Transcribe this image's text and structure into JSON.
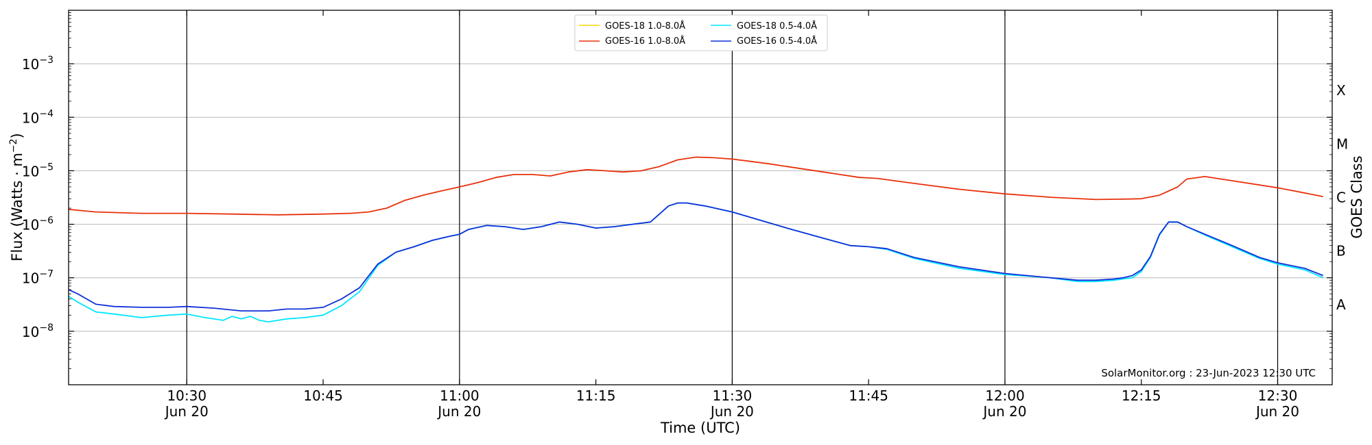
{
  "chart_data": {
    "type": "line",
    "xlabel": "Time (UTC)",
    "ylabel_main": "Flux (Watts · m",
    "ylabel_sup": "−2",
    "ylabel_close": ")",
    "y2label": "GOES Class",
    "xlim": [
      "10:17",
      "12:36"
    ],
    "ylim": [
      1e-09,
      0.01
    ],
    "yscale": "log",
    "x_ticks": [
      {
        "t": "10:30",
        "label": "10:30",
        "sub": "Jun 20"
      },
      {
        "t": "10:45",
        "label": "10:45",
        "sub": ""
      },
      {
        "t": "11:00",
        "label": "11:00",
        "sub": "Jun 20"
      },
      {
        "t": "11:15",
        "label": "11:15",
        "sub": ""
      },
      {
        "t": "11:30",
        "label": "11:30",
        "sub": "Jun 20"
      },
      {
        "t": "11:45",
        "label": "11:45",
        "sub": ""
      },
      {
        "t": "12:00",
        "label": "12:00",
        "sub": "Jun 20"
      },
      {
        "t": "12:15",
        "label": "12:15",
        "sub": ""
      },
      {
        "t": "12:30",
        "label": "12:30",
        "sub": "Jun 20"
      }
    ],
    "vertical_lines": [
      "10:30",
      "11:00",
      "11:30",
      "12:00",
      "12:30"
    ],
    "y_ticks": [
      {
        "value": 1e-08,
        "base": "10",
        "exp": "−8"
      },
      {
        "value": 1e-07,
        "base": "10",
        "exp": "−7"
      },
      {
        "value": 1e-06,
        "base": "10",
        "exp": "−6"
      },
      {
        "value": 1e-05,
        "base": "10",
        "exp": "−5"
      },
      {
        "value": 0.0001,
        "base": "10",
        "exp": "−4"
      },
      {
        "value": 0.001,
        "base": "10",
        "exp": "−3"
      }
    ],
    "goes_classes": [
      {
        "label": "A",
        "value": 3.16e-08
      },
      {
        "label": "B",
        "value": 3.16e-07
      },
      {
        "label": "C",
        "value": 3.16e-06
      },
      {
        "label": "M",
        "value": 3.16e-05
      },
      {
        "label": "X",
        "value": 0.000316
      }
    ],
    "legend": [
      {
        "name": "GOES-18 1.0-8.0Å",
        "color": "#ffd700"
      },
      {
        "name": "GOES-18 0.5-4.0Å",
        "color": "#00e5ff"
      },
      {
        "name": "GOES-16 1.0-8.0Å",
        "color": "#e8300a"
      },
      {
        "name": "GOES-16 0.5-4.0Å",
        "color": "#1030d8"
      }
    ],
    "credit": "SolarMonitor.org : 23-Jun-2023 12:30 UTC",
    "series": [
      {
        "name": "GOES-16 1.0-8.0Å",
        "color": "#e8300a",
        "x": [
          "10:17",
          "10:20",
          "10:25",
          "10:30",
          "10:35",
          "10:40",
          "10:45",
          "10:48",
          "10:50",
          "10:52",
          "10:54",
          "10:56",
          "10:58",
          "11:00",
          "11:02",
          "11:04",
          "11:06",
          "11:08",
          "11:10",
          "11:12",
          "11:14",
          "11:16",
          "11:18",
          "11:20",
          "11:22",
          "11:24",
          "11:26",
          "11:28",
          "11:30",
          "11:32",
          "11:34",
          "11:36",
          "11:40",
          "11:44",
          "11:46",
          "11:50",
          "11:55",
          "12:00",
          "12:05",
          "12:10",
          "12:13",
          "12:15",
          "12:17",
          "12:19",
          "12:20",
          "12:22",
          "12:25",
          "12:30",
          "12:35"
        ],
        "y": [
          1.9e-06,
          1.7e-06,
          1.6e-06,
          1.6e-06,
          1.55e-06,
          1.5e-06,
          1.55e-06,
          1.6e-06,
          1.7e-06,
          2e-06,
          2.8e-06,
          3.5e-06,
          4.2e-06,
          5e-06,
          6e-06,
          7.5e-06,
          8.5e-06,
          8.5e-06,
          8e-06,
          9.5e-06,
          1.05e-05,
          1e-05,
          9.5e-06,
          1e-05,
          1.2e-05,
          1.6e-05,
          1.8e-05,
          1.75e-05,
          1.65e-05,
          1.5e-05,
          1.35e-05,
          1.2e-05,
          9.5e-06,
          7.5e-06,
          7.2e-06,
          5.8e-06,
          4.5e-06,
          3.7e-06,
          3.2e-06,
          2.9e-06,
          2.95e-06,
          3e-06,
          3.5e-06,
          5e-06,
          7e-06,
          7.8e-06,
          6.5e-06,
          4.8e-06,
          3.3e-06
        ]
      },
      {
        "name": "GOES-16 0.5-4.0Å",
        "color": "#1030d8",
        "x": [
          "10:17",
          "10:18",
          "10:20",
          "10:22",
          "10:25",
          "10:28",
          "10:30",
          "10:33",
          "10:36",
          "10:39",
          "10:41",
          "10:43",
          "10:45",
          "10:47",
          "10:49",
          "10:51",
          "10:53",
          "10:55",
          "10:57",
          "10:59",
          "11:00",
          "11:01",
          "11:03",
          "11:05",
          "11:07",
          "11:09",
          "11:11",
          "11:13",
          "11:15",
          "11:17",
          "11:19",
          "11:21",
          "11:23",
          "11:24",
          "11:25",
          "11:27",
          "11:30",
          "11:33",
          "11:36",
          "11:40",
          "11:43",
          "11:45",
          "11:47",
          "11:50",
          "11:55",
          "12:00",
          "12:05",
          "12:08",
          "12:10",
          "12:12",
          "12:13",
          "12:14",
          "12:15",
          "12:16",
          "12:17",
          "12:18",
          "12:19",
          "12:20",
          "12:22",
          "12:25",
          "12:28",
          "12:30",
          "12:33",
          "12:35"
        ],
        "y": [
          6e-08,
          5e-08,
          3.2e-08,
          2.9e-08,
          2.8e-08,
          2.8e-08,
          2.9e-08,
          2.7e-08,
          2.4e-08,
          2.4e-08,
          2.6e-08,
          2.6e-08,
          2.8e-08,
          4e-08,
          6.5e-08,
          1.8e-07,
          3e-07,
          3.8e-07,
          5e-07,
          6e-07,
          6.5e-07,
          8e-07,
          9.5e-07,
          9e-07,
          8e-07,
          9e-07,
          1.1e-06,
          1e-06,
          8.5e-07,
          9e-07,
          1e-06,
          1.1e-06,
          2.2e-06,
          2.5e-06,
          2.5e-06,
          2.2e-06,
          1.7e-06,
          1.2e-06,
          8.5e-07,
          5.5e-07,
          4e-07,
          3.8e-07,
          3.5e-07,
          2.4e-07,
          1.6e-07,
          1.2e-07,
          1e-07,
          9e-08,
          9e-08,
          9.5e-08,
          1e-07,
          1.1e-07,
          1.4e-07,
          2.5e-07,
          6.5e-07,
          1.1e-06,
          1.1e-06,
          9e-07,
          6.5e-07,
          4e-07,
          2.4e-07,
          1.9e-07,
          1.5e-07,
          1.1e-07
        ]
      },
      {
        "name": "GOES-18 0.5-4.0Å",
        "color": "#00e5ff",
        "x": [
          "10:17",
          "10:18",
          "10:20",
          "10:22",
          "10:25",
          "10:28",
          "10:30",
          "10:32",
          "10:34",
          "10:35",
          "10:36",
          "10:37",
          "10:38",
          "10:39",
          "10:41",
          "10:43",
          "10:45",
          "10:47",
          "10:49",
          "10:51",
          "10:53",
          "10:55",
          "10:57",
          "10:59",
          "11:00",
          "11:01",
          "11:03",
          "11:05",
          "11:07",
          "11:09",
          "11:11",
          "11:13",
          "11:15",
          "11:17",
          "11:19",
          "11:21",
          "11:23",
          "11:24",
          "11:25",
          "11:27",
          "11:30",
          "11:33",
          "11:36",
          "11:40",
          "11:43",
          "11:45",
          "11:47",
          "11:50",
          "11:55",
          "12:00",
          "12:05",
          "12:08",
          "12:10",
          "12:12",
          "12:13",
          "12:14",
          "12:15",
          "12:16",
          "12:17",
          "12:18",
          "12:19",
          "12:20",
          "12:22",
          "12:25",
          "12:28",
          "12:30",
          "12:33",
          "12:35"
        ],
        "y": [
          4.5e-08,
          3.5e-08,
          2.3e-08,
          2.1e-08,
          1.8e-08,
          2e-08,
          2.1e-08,
          1.8e-08,
          1.6e-08,
          1.9e-08,
          1.7e-08,
          1.9e-08,
          1.6e-08,
          1.5e-08,
          1.7e-08,
          1.8e-08,
          2e-08,
          3e-08,
          5.5e-08,
          1.7e-07,
          3e-07,
          3.8e-07,
          5e-07,
          6e-07,
          6.5e-07,
          8e-07,
          9.5e-07,
          9e-07,
          8e-07,
          9e-07,
          1.1e-06,
          1e-06,
          8.5e-07,
          9e-07,
          1e-06,
          1.1e-06,
          2.2e-06,
          2.5e-06,
          2.5e-06,
          2.2e-06,
          1.7e-06,
          1.2e-06,
          8.5e-07,
          5.5e-07,
          4e-07,
          3.8e-07,
          3.4e-07,
          2.3e-07,
          1.5e-07,
          1.15e-07,
          1e-07,
          8.5e-08,
          8.5e-08,
          9e-08,
          9.5e-08,
          1e-07,
          1.3e-07,
          2.4e-07,
          6.3e-07,
          1.1e-06,
          1.1e-06,
          9e-07,
          6.3e-07,
          3.8e-07,
          2.3e-07,
          1.8e-07,
          1.4e-07,
          1e-07
        ]
      }
    ]
  }
}
